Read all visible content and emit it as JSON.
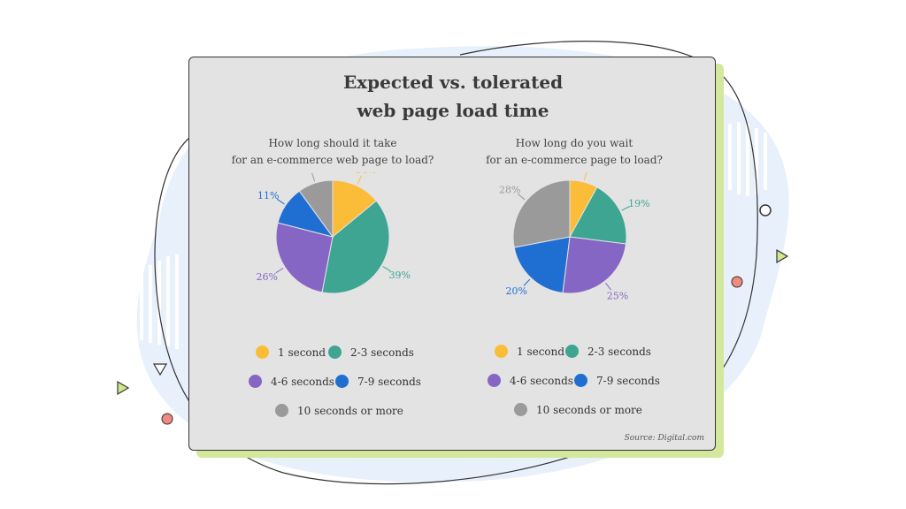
{
  "title_lines": [
    "Expected vs. tolerated",
    "web page load time"
  ],
  "source": "Source: Digital.com",
  "colors": {
    "1 second": "#fbbd37",
    "2-3 seconds": "#3da592",
    "4-6 seconds": "#8566c4",
    "7-9 seconds": "#1f6fd3",
    "10 seconds or more": "#9a9a9a"
  },
  "legend_labels": [
    "1 second",
    "2-3 seconds",
    "4-6 seconds",
    "7-9 seconds",
    "10 seconds or more"
  ],
  "chart_data": [
    {
      "type": "pie",
      "title_lines": [
        "How long should it take",
        "for an e-commerce web page to load?"
      ],
      "categories": [
        "1 second",
        "2-3 seconds",
        "4-6 seconds",
        "7-9 seconds",
        "10 seconds or more"
      ],
      "values": [
        14,
        39,
        26,
        11,
        10
      ],
      "labels": [
        "14%",
        "39%",
        "26%",
        "11%",
        "10%"
      ]
    },
    {
      "type": "pie",
      "title_lines": [
        "How long do you wait",
        "for an e-commerce page to load?"
      ],
      "categories": [
        "1 second",
        "2-3 seconds",
        "4-6 seconds",
        "7-9 seconds",
        "10 seconds or more"
      ],
      "values": [
        8,
        19,
        25,
        20,
        28
      ],
      "labels": [
        "8%",
        "19%",
        "25%",
        "20%",
        "28%"
      ]
    }
  ]
}
